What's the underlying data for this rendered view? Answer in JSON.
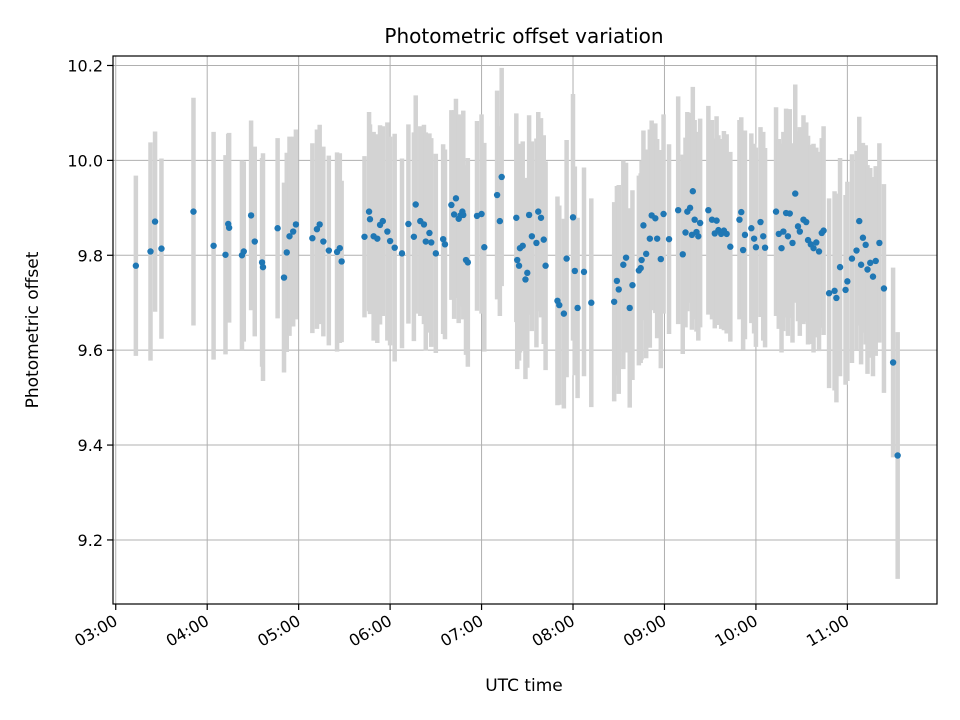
{
  "chart_data": {
    "type": "scatter",
    "title": "Photometric offset variation",
    "xlabel": "UTC time",
    "ylabel": "Photometric offset",
    "x_unit": "hours",
    "xlim": [
      2.97,
      11.98
    ],
    "ylim": [
      9.065,
      10.22
    ],
    "x_ticks": [
      {
        "value": 3,
        "label": "03:00"
      },
      {
        "value": 4,
        "label": "04:00"
      },
      {
        "value": 5,
        "label": "05:00"
      },
      {
        "value": 6,
        "label": "06:00"
      },
      {
        "value": 7,
        "label": "07:00"
      },
      {
        "value": 8,
        "label": "08:00"
      },
      {
        "value": 9,
        "label": "09:00"
      },
      {
        "value": 10,
        "label": "10:00"
      },
      {
        "value": 11,
        "label": "11:00"
      }
    ],
    "y_ticks": [
      {
        "value": 9.2,
        "label": "9.2"
      },
      {
        "value": 9.4,
        "label": "9.4"
      },
      {
        "value": 9.6,
        "label": "9.6"
      },
      {
        "value": 9.8,
        "label": "9.8"
      },
      {
        "value": 10.0,
        "label": "10.0"
      },
      {
        "value": 10.2,
        "label": "10.2"
      }
    ],
    "grid": true,
    "colors": {
      "point": "#1f77b4",
      "errorbar": "#d3d3d3"
    },
    "points": [
      [
        3.22,
        9.778,
        0.19
      ],
      [
        3.38,
        9.808,
        0.23
      ],
      [
        3.43,
        9.871,
        0.19
      ],
      [
        3.5,
        9.814,
        0.19
      ],
      [
        3.85,
        9.892,
        0.24
      ],
      [
        4.07,
        9.82,
        0.24
      ],
      [
        4.2,
        9.801,
        0.21
      ],
      [
        4.23,
        9.866,
        0.19
      ],
      [
        4.24,
        9.858,
        0.2
      ],
      [
        4.38,
        9.8,
        0.2
      ],
      [
        4.4,
        9.808,
        0.19
      ],
      [
        4.48,
        9.884,
        0.2
      ],
      [
        4.52,
        9.829,
        0.2
      ],
      [
        4.6,
        9.785,
        0.22
      ],
      [
        4.61,
        9.775,
        0.24
      ],
      [
        4.77,
        9.857,
        0.19
      ],
      [
        4.84,
        9.753,
        0.2
      ],
      [
        4.87,
        9.806,
        0.21
      ],
      [
        4.9,
        9.84,
        0.21
      ],
      [
        4.94,
        9.85,
        0.2
      ],
      [
        4.97,
        9.865,
        0.2
      ],
      [
        5.15,
        9.836,
        0.2
      ],
      [
        5.2,
        9.855,
        0.21
      ],
      [
        5.23,
        9.865,
        0.21
      ],
      [
        5.27,
        9.829,
        0.2
      ],
      [
        5.33,
        9.81,
        0.2
      ],
      [
        5.42,
        9.807,
        0.21
      ],
      [
        5.45,
        9.815,
        0.2
      ],
      [
        5.47,
        9.787,
        0.17
      ],
      [
        5.72,
        9.839,
        0.17
      ],
      [
        5.77,
        9.892,
        0.21
      ],
      [
        5.78,
        9.876,
        0.2
      ],
      [
        5.82,
        9.84,
        0.22
      ],
      [
        5.86,
        9.835,
        0.22
      ],
      [
        5.89,
        9.864,
        0.21
      ],
      [
        5.92,
        9.872,
        0.2
      ],
      [
        5.97,
        9.85,
        0.23
      ],
      [
        6.0,
        9.83,
        0.22
      ],
      [
        6.05,
        9.816,
        0.24
      ],
      [
        6.13,
        9.804,
        0.2
      ],
      [
        6.2,
        9.866,
        0.21
      ],
      [
        6.26,
        9.839,
        0.22
      ],
      [
        6.28,
        9.907,
        0.23
      ],
      [
        6.33,
        9.872,
        0.2
      ],
      [
        6.37,
        9.865,
        0.21
      ],
      [
        6.39,
        9.829,
        0.23
      ],
      [
        6.43,
        9.847,
        0.21
      ],
      [
        6.45,
        9.827,
        0.22
      ],
      [
        6.5,
        9.804,
        0.21
      ],
      [
        6.58,
        9.834,
        0.2
      ],
      [
        6.6,
        9.823,
        0.2
      ],
      [
        6.67,
        9.906,
        0.2
      ],
      [
        6.7,
        9.886,
        0.22
      ],
      [
        6.72,
        9.92,
        0.21
      ],
      [
        6.75,
        9.877,
        0.22
      ],
      [
        6.77,
        9.884,
        0.19
      ],
      [
        6.79,
        9.892,
        0.2
      ],
      [
        6.8,
        9.885,
        0.22
      ],
      [
        6.83,
        9.79,
        0.2
      ],
      [
        6.85,
        9.785,
        0.22
      ],
      [
        6.95,
        9.883,
        0.2
      ],
      [
        7.0,
        9.887,
        0.21
      ],
      [
        7.03,
        9.817,
        0.22
      ],
      [
        7.17,
        9.927,
        0.22
      ],
      [
        7.2,
        9.872,
        0.2
      ],
      [
        7.22,
        9.965,
        0.23
      ],
      [
        7.38,
        9.879,
        0.22
      ],
      [
        7.39,
        9.79,
        0.23
      ],
      [
        7.41,
        9.778,
        0.2
      ],
      [
        7.42,
        9.815,
        0.22
      ],
      [
        7.45,
        9.82,
        0.22
      ],
      [
        7.48,
        9.749,
        0.21
      ],
      [
        7.5,
        9.763,
        0.2
      ],
      [
        7.52,
        9.885,
        0.21
      ],
      [
        7.55,
        9.84,
        0.2
      ],
      [
        7.6,
        9.826,
        0.22
      ],
      [
        7.62,
        9.892,
        0.21
      ],
      [
        7.65,
        9.879,
        0.21
      ],
      [
        7.68,
        9.833,
        0.22
      ],
      [
        7.7,
        9.778,
        0.22
      ],
      [
        7.83,
        9.704,
        0.22
      ],
      [
        7.85,
        9.695,
        0.21
      ],
      [
        7.9,
        9.677,
        0.2
      ],
      [
        7.93,
        9.793,
        0.25
      ],
      [
        8.0,
        9.88,
        0.26
      ],
      [
        8.02,
        9.767,
        0.22
      ],
      [
        8.05,
        9.689,
        0.19
      ],
      [
        8.12,
        9.765,
        0.22
      ],
      [
        8.2,
        9.7,
        0.22
      ],
      [
        8.45,
        9.702,
        0.21
      ],
      [
        8.48,
        9.746,
        0.2
      ],
      [
        8.5,
        9.728,
        0.22
      ],
      [
        8.55,
        9.78,
        0.22
      ],
      [
        8.58,
        9.795,
        0.2
      ],
      [
        8.62,
        9.689,
        0.21
      ],
      [
        8.65,
        9.737,
        0.2
      ],
      [
        8.72,
        9.768,
        0.2
      ],
      [
        8.74,
        9.773,
        0.2
      ],
      [
        8.75,
        9.79,
        0.21
      ],
      [
        8.77,
        9.863,
        0.2
      ],
      [
        8.8,
        9.803,
        0.22
      ],
      [
        8.84,
        9.835,
        0.23
      ],
      [
        8.86,
        9.884,
        0.2
      ],
      [
        8.9,
        9.878,
        0.2
      ],
      [
        8.92,
        9.835,
        0.21
      ],
      [
        8.96,
        9.792,
        0.23
      ],
      [
        8.99,
        9.887,
        0.21
      ],
      [
        9.05,
        9.834,
        0.2
      ],
      [
        9.15,
        9.895,
        0.24
      ],
      [
        9.2,
        9.802,
        0.21
      ],
      [
        9.23,
        9.848,
        0.2
      ],
      [
        9.25,
        9.892,
        0.21
      ],
      [
        9.28,
        9.9,
        0.2
      ],
      [
        9.3,
        9.843,
        0.2
      ],
      [
        9.31,
        9.935,
        0.22
      ],
      [
        9.33,
        9.875,
        0.21
      ],
      [
        9.35,
        9.849,
        0.21
      ],
      [
        9.37,
        9.84,
        0.22
      ],
      [
        9.39,
        9.868,
        0.22
      ],
      [
        9.48,
        9.895,
        0.22
      ],
      [
        9.52,
        9.875,
        0.21
      ],
      [
        9.55,
        9.846,
        0.2
      ],
      [
        9.57,
        9.873,
        0.22
      ],
      [
        9.59,
        9.853,
        0.2
      ],
      [
        9.62,
        9.845,
        0.2
      ],
      [
        9.65,
        9.852,
        0.21
      ],
      [
        9.68,
        9.845,
        0.21
      ],
      [
        9.72,
        9.818,
        0.2
      ],
      [
        9.82,
        9.875,
        0.21
      ],
      [
        9.84,
        9.891,
        0.2
      ],
      [
        9.86,
        9.811,
        0.21
      ],
      [
        9.88,
        9.843,
        0.22
      ],
      [
        9.95,
        9.857,
        0.2
      ],
      [
        9.98,
        9.835,
        0.2
      ],
      [
        10.0,
        9.817,
        0.21
      ],
      [
        10.05,
        9.87,
        0.2
      ],
      [
        10.08,
        9.84,
        0.22
      ],
      [
        10.1,
        9.816,
        0.21
      ],
      [
        10.22,
        9.892,
        0.22
      ],
      [
        10.25,
        9.845,
        0.2
      ],
      [
        10.28,
        9.815,
        0.22
      ],
      [
        10.3,
        9.85,
        0.21
      ],
      [
        10.33,
        9.889,
        0.22
      ],
      [
        10.35,
        9.84,
        0.21
      ],
      [
        10.37,
        9.888,
        0.22
      ],
      [
        10.4,
        9.826,
        0.21
      ],
      [
        10.43,
        9.93,
        0.23
      ],
      [
        10.46,
        9.861,
        0.2
      ],
      [
        10.48,
        9.85,
        0.22
      ],
      [
        10.52,
        9.875,
        0.22
      ],
      [
        10.55,
        9.87,
        0.21
      ],
      [
        10.57,
        9.832,
        0.22
      ],
      [
        10.6,
        9.823,
        0.21
      ],
      [
        10.63,
        9.815,
        0.22
      ],
      [
        10.66,
        9.827,
        0.2
      ],
      [
        10.69,
        9.808,
        0.21
      ],
      [
        10.72,
        9.847,
        0.2
      ],
      [
        10.74,
        9.852,
        0.22
      ],
      [
        10.8,
        9.72,
        0.2
      ],
      [
        10.86,
        9.725,
        0.21
      ],
      [
        10.88,
        9.71,
        0.22
      ],
      [
        10.92,
        9.775,
        0.23
      ],
      [
        10.98,
        9.727,
        0.2
      ],
      [
        11.0,
        9.745,
        0.21
      ],
      [
        11.05,
        9.793,
        0.22
      ],
      [
        11.1,
        9.81,
        0.21
      ],
      [
        11.13,
        9.872,
        0.22
      ],
      [
        11.15,
        9.78,
        0.21
      ],
      [
        11.17,
        9.837,
        0.2
      ],
      [
        11.2,
        9.822,
        0.21
      ],
      [
        11.22,
        9.77,
        0.22
      ],
      [
        11.25,
        9.784,
        0.2
      ],
      [
        11.28,
        9.755,
        0.21
      ],
      [
        11.31,
        9.788,
        0.2
      ],
      [
        11.35,
        9.826,
        0.21
      ],
      [
        11.4,
        9.73,
        0.22
      ],
      [
        11.5,
        9.574,
        0.2
      ],
      [
        11.55,
        9.378,
        0.26
      ]
    ]
  }
}
